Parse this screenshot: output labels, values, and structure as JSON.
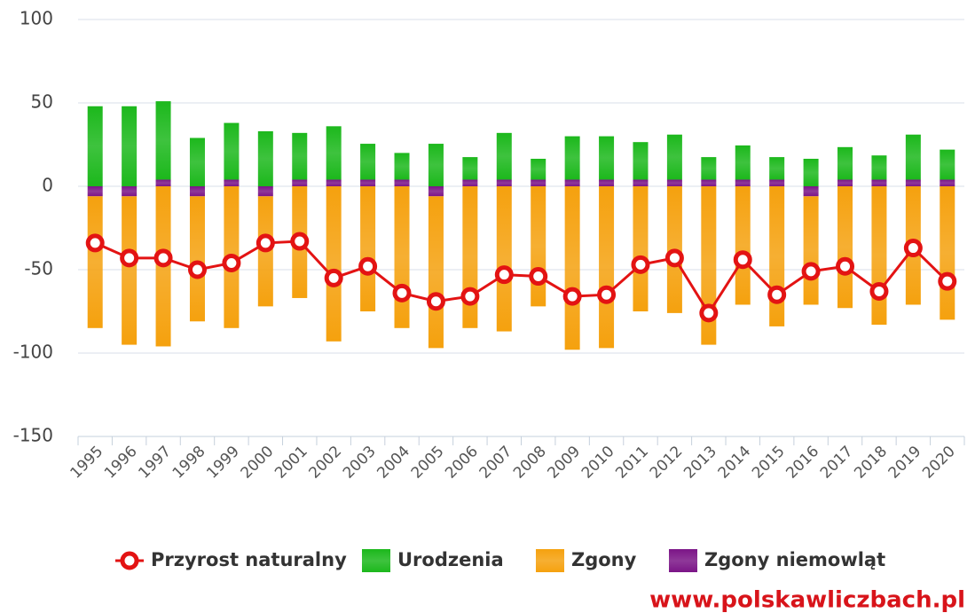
{
  "chart_data": {
    "type": "bar",
    "stacked": true,
    "categories": [
      "1995",
      "1996",
      "1997",
      "1998",
      "1999",
      "2000",
      "2001",
      "2002",
      "2003",
      "2004",
      "2005",
      "2006",
      "2007",
      "2008",
      "2009",
      "2010",
      "2011",
      "2012",
      "2013",
      "2014",
      "2015",
      "2016",
      "2017",
      "2018",
      "2019",
      "2020"
    ],
    "series": [
      {
        "name": "Przyrost naturalny",
        "type": "line",
        "color": "#e31313",
        "values": [
          -34,
          -43,
          -43,
          -50,
          -46,
          -34,
          -33,
          -55,
          -48,
          -64,
          -69,
          -66,
          -53,
          -54,
          -66,
          -65,
          -47,
          -43,
          -76,
          -44,
          -65,
          -51,
          -48,
          -63,
          -37,
          -57
        ]
      },
      {
        "name": "Urodzenia",
        "color": "#1cb81c",
        "values": [
          48,
          48,
          47,
          29,
          34,
          33,
          28,
          32,
          21.5,
          16,
          25.5,
          13.5,
          28,
          12.5,
          26,
          26,
          22.5,
          27,
          13.5,
          20.5,
          13.5,
          16.5,
          19.5,
          14.5,
          27,
          18
        ]
      },
      {
        "name": "Zgony",
        "color": "#f5a10e",
        "values": [
          -79,
          -89,
          -96,
          -75,
          -85,
          -66,
          -67,
          -93,
          -75,
          -85,
          -91,
          -85,
          -87,
          -72,
          -98,
          -97,
          -75,
          -76,
          -95,
          -71,
          -84,
          -65,
          -73,
          -83,
          -71,
          -80
        ]
      },
      {
        "name": "Zgony niemowląt",
        "color": "#7b1587",
        "values": [
          -6,
          -6,
          4,
          -6,
          4,
          -6,
          4,
          4,
          4,
          4,
          -6,
          4,
          4,
          4,
          4,
          4,
          4,
          4,
          4,
          4,
          4,
          -6,
          4,
          4,
          4,
          4
        ]
      }
    ],
    "ylim": [
      -150,
      100
    ],
    "yticks": [
      -150,
      -100,
      -50,
      0,
      50,
      100
    ],
    "grid": true,
    "watermark": "www.polskawliczbach.pl"
  }
}
